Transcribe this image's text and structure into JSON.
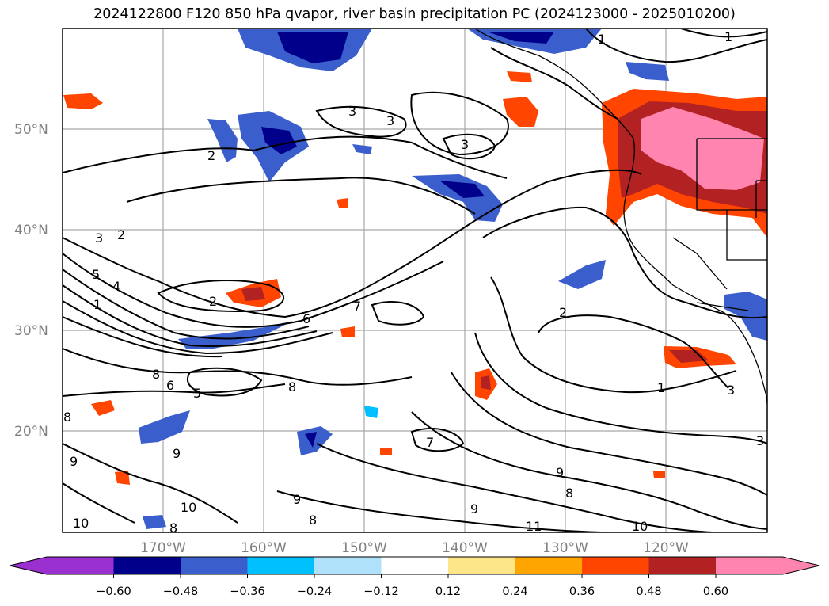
{
  "title": "2024122800 F120 850 hPa qvapor, river basin precipitation PC (2024123000 - 2025010200)",
  "latitude_labels": [
    "50°N",
    "40°N",
    "30°N",
    "20°N"
  ],
  "longitude_labels": [
    "170°W",
    "160°W",
    "150°W",
    "140°W",
    "130°W",
    "120°W"
  ],
  "colorbar": {
    "tick_labels": [
      "−0.60",
      "−0.48",
      "−0.36",
      "−0.24",
      "−0.12",
      "0.12",
      "0.24",
      "0.36",
      "0.48",
      "0.60"
    ],
    "colors": [
      "#9b30d0",
      "#00008b",
      "#3a5fcd",
      "#00bfff",
      "#afe1fa",
      "#ffffff",
      "#fde68a",
      "#ffa500",
      "#ff4500",
      "#b22222",
      "#ff85b0",
      "#ff85b0"
    ]
  },
  "contour_labels": [
    "1",
    "1",
    "3",
    "3",
    "3",
    "2",
    "3",
    "2",
    "5",
    "4",
    "1",
    "2",
    "7",
    "6",
    "8",
    "6",
    "5",
    "8",
    "8",
    "9",
    "9",
    "10",
    "8",
    "10",
    "9",
    "7",
    "9",
    "8",
    "9",
    "8",
    "11",
    "10",
    "2",
    "1",
    "3",
    "3"
  ]
}
